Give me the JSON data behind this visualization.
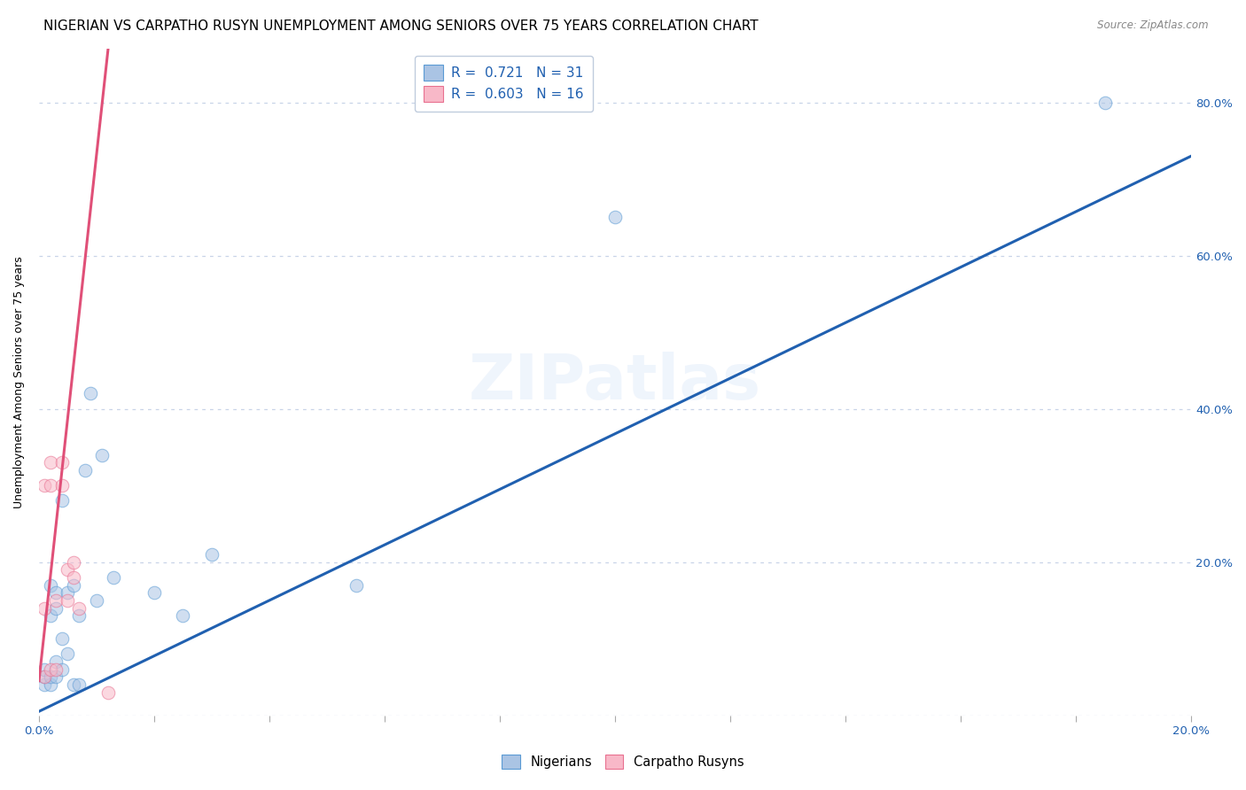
{
  "title": "NIGERIAN VS CARPATHO RUSYN UNEMPLOYMENT AMONG SENIORS OVER 75 YEARS CORRELATION CHART",
  "source": "Source: ZipAtlas.com",
  "ylabel": "Unemployment Among Seniors over 75 years",
  "xlim": [
    0.0,
    0.2
  ],
  "ylim": [
    0.0,
    0.87
  ],
  "xticks": [
    0.0,
    0.02,
    0.04,
    0.06,
    0.08,
    0.1,
    0.12,
    0.14,
    0.16,
    0.18,
    0.2
  ],
  "yticks": [
    0.0,
    0.2,
    0.4,
    0.6,
    0.8
  ],
  "watermark_text": "ZIPatlas",
  "nigerian_R": 0.721,
  "nigerian_N": 31,
  "carpatho_R": 0.603,
  "carpatho_N": 16,
  "nigerian_color": "#aac4e4",
  "nigerian_edge_color": "#5a9ad4",
  "nigerian_line_color": "#2060b0",
  "carpatho_color": "#f8b8c8",
  "carpatho_edge_color": "#e87090",
  "carpatho_line_color": "#e05078",
  "blue_label_color": "#2060b0",
  "background_color": "#ffffff",
  "grid_color": "#c8d4e8",
  "nigerian_x": [
    0.001,
    0.001,
    0.001,
    0.002,
    0.002,
    0.002,
    0.002,
    0.003,
    0.003,
    0.003,
    0.003,
    0.004,
    0.004,
    0.004,
    0.005,
    0.005,
    0.006,
    0.006,
    0.007,
    0.007,
    0.008,
    0.009,
    0.01,
    0.011,
    0.013,
    0.02,
    0.025,
    0.03,
    0.055,
    0.1,
    0.185
  ],
  "nigerian_y": [
    0.04,
    0.05,
    0.06,
    0.04,
    0.05,
    0.13,
    0.17,
    0.05,
    0.07,
    0.14,
    0.16,
    0.06,
    0.1,
    0.28,
    0.08,
    0.16,
    0.04,
    0.17,
    0.04,
    0.13,
    0.32,
    0.42,
    0.15,
    0.34,
    0.18,
    0.16,
    0.13,
    0.21,
    0.17,
    0.65,
    0.8
  ],
  "carpatho_x": [
    0.001,
    0.001,
    0.001,
    0.002,
    0.002,
    0.002,
    0.003,
    0.003,
    0.004,
    0.004,
    0.005,
    0.005,
    0.006,
    0.006,
    0.007,
    0.012
  ],
  "carpatho_y": [
    0.05,
    0.14,
    0.3,
    0.06,
    0.3,
    0.33,
    0.06,
    0.15,
    0.3,
    0.33,
    0.15,
    0.19,
    0.18,
    0.2,
    0.14,
    0.03
  ],
  "nig_line_x0": 0.0,
  "nig_line_y0": 0.005,
  "nig_line_x1": 0.2,
  "nig_line_y1": 0.73,
  "carp_line_x0": 0.0,
  "carp_line_y0": 0.045,
  "carp_line_x1": 0.012,
  "carp_line_y1": 0.87,
  "title_fontsize": 11,
  "axis_label_fontsize": 9,
  "tick_fontsize": 9.5,
  "legend_fontsize": 11,
  "marker_size": 110,
  "marker_alpha": 0.55,
  "watermark_fontsize": 52,
  "watermark_alpha": 0.18,
  "watermark_color": "#aac8f0"
}
